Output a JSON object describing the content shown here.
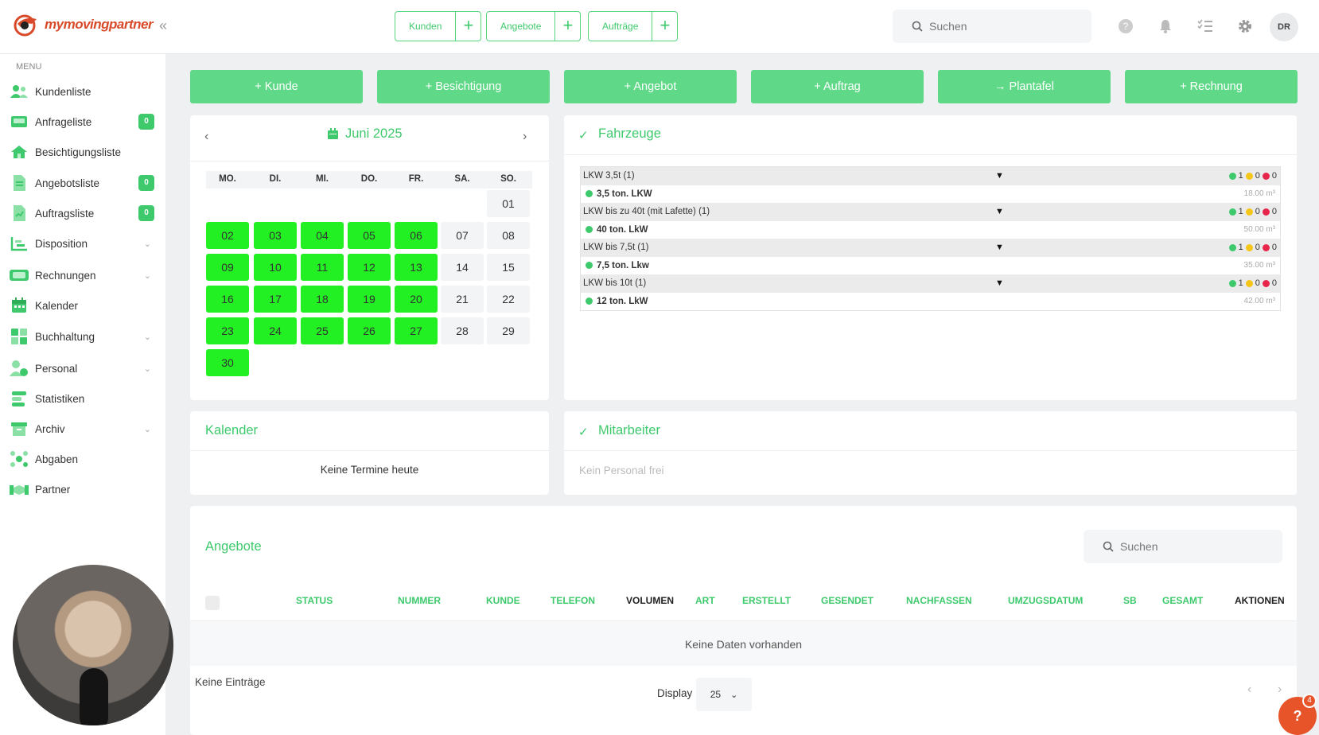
{
  "brand": {
    "name_part1": "my",
    "name_part2": "moving",
    "name_part3": "partner"
  },
  "topbar": {
    "quick": [
      {
        "label": "Kunden"
      },
      {
        "label": "Angebote"
      },
      {
        "label": "Aufträge"
      }
    ],
    "search_placeholder": "Suchen",
    "avatar_initials": "DR"
  },
  "sidebar": {
    "menu_label": "MENU",
    "items": [
      {
        "label": "Kundenliste",
        "icon": "users-icon"
      },
      {
        "label": "Anfrageliste",
        "icon": "inbox-icon",
        "badge": "0"
      },
      {
        "label": "Besichtigungsliste",
        "icon": "house-icon"
      },
      {
        "label": "Angebotsliste",
        "icon": "document-icon",
        "badge": "0"
      },
      {
        "label": "Auftragsliste",
        "icon": "clipboard-icon",
        "badge": "0"
      },
      {
        "label": "Disposition",
        "icon": "chart-icon"
      },
      {
        "label": "Rechnungen",
        "icon": "cash-icon"
      },
      {
        "label": "Kalender",
        "icon": "calendar-icon"
      },
      {
        "label": "Buchhaltung",
        "icon": "calculator-icon"
      },
      {
        "label": "Personal",
        "icon": "person-icon"
      },
      {
        "label": "Statistiken",
        "icon": "stats-icon"
      },
      {
        "label": "Archiv",
        "icon": "archive-icon"
      },
      {
        "label": "Abgaben",
        "icon": "network-icon"
      },
      {
        "label": "Partner",
        "icon": "handshake-icon"
      }
    ]
  },
  "actions": [
    {
      "label": "+ Kunde"
    },
    {
      "label": "+ Besichtigung"
    },
    {
      "label": "+ Angebot"
    },
    {
      "label": "+ Auftrag"
    },
    {
      "label": "→ Plantafel"
    },
    {
      "label": "+ Rechnung"
    }
  ],
  "calendar": {
    "month_label": "Juni 2025",
    "weekdays": [
      "MO.",
      "DI.",
      "MI.",
      "DO.",
      "FR.",
      "SA.",
      "SO."
    ],
    "days": [
      "01",
      "02",
      "03",
      "04",
      "05",
      "06",
      "07",
      "08",
      "09",
      "10",
      "11",
      "12",
      "13",
      "14",
      "15",
      "16",
      "17",
      "18",
      "19",
      "20",
      "21",
      "22",
      "23",
      "24",
      "25",
      "26",
      "27",
      "28",
      "29",
      "30"
    ]
  },
  "vehicles": {
    "title": "Fahrzeuge",
    "groups": [
      {
        "name": "LKW 3,5t (1)",
        "green": "1",
        "yellow": "0",
        "red": "0",
        "vehicle": "3,5 ton. LKW",
        "volume": "18.00 m³"
      },
      {
        "name": "LKW bis zu 40t (mit Lafette) (1)",
        "green": "1",
        "yellow": "0",
        "red": "0",
        "vehicle": "40 ton. LkW",
        "volume": "50.00 m³"
      },
      {
        "name": "LKW bis 7,5t (1)",
        "green": "1",
        "yellow": "0",
        "red": "0",
        "vehicle": "7,5 ton. Lkw",
        "volume": "35.00 m³"
      },
      {
        "name": "LKW bis 10t (1)",
        "green": "1",
        "yellow": "0",
        "red": "0",
        "vehicle": "12 ton. LkW",
        "volume": "42.00 m³"
      }
    ],
    "colors": {
      "green": "#3ec96c",
      "yellow": "#f5c518",
      "red": "#e8254a"
    }
  },
  "kalender": {
    "title": "Kalender",
    "empty": "Keine Termine heute"
  },
  "mitarbeiter": {
    "title": "Mitarbeiter",
    "empty": "Kein Personal frei"
  },
  "angebote": {
    "title": "Angebote",
    "search_placeholder": "Suchen",
    "columns": [
      "STATUS",
      "NUMMER",
      "KUNDE",
      "TELEFON",
      "VOLUMEN",
      "ART",
      "ERSTELLT",
      "GESENDET",
      "NACHFASSEN",
      "UMZUGSDATUM",
      "SB",
      "GESAMT",
      "AKTIONEN"
    ],
    "empty": "Keine Daten vorhanden",
    "no_entries": "Keine Einträge",
    "display_label": "Display",
    "page_size": "25"
  },
  "help": {
    "label": "?",
    "badge": "4"
  },
  "accent": "#3ec96c"
}
